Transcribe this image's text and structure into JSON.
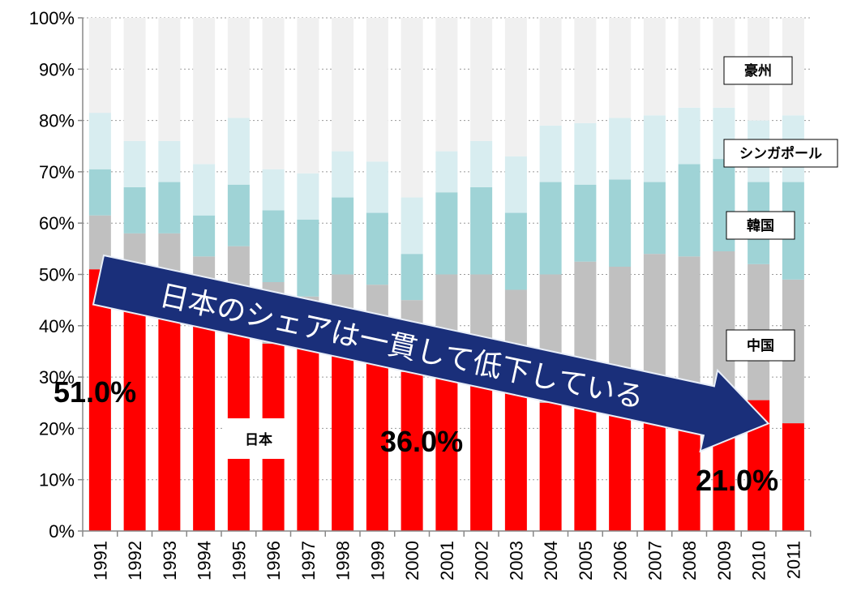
{
  "chart_data": {
    "type": "bar",
    "stacked": true,
    "ylim": [
      0,
      100
    ],
    "y_unit": "%",
    "y_ticks": [
      "0%",
      "10%",
      "20%",
      "30%",
      "40%",
      "50%",
      "60%",
      "70%",
      "80%",
      "90%",
      "100%"
    ],
    "categories": [
      "1991",
      "1992",
      "1993",
      "1994",
      "1995",
      "1996",
      "1997",
      "1998",
      "1999",
      "2000",
      "2001",
      "2002",
      "2003",
      "2004",
      "2005",
      "2006",
      "2007",
      "2008",
      "2009",
      "2010",
      "2011"
    ],
    "grid": true,
    "series": [
      {
        "name": "日本",
        "color": "#ff0000",
        "values": [
          51,
          43,
          44,
          42.5,
          39.5,
          36.5,
          35.7,
          36,
          33,
          31,
          36,
          31,
          33,
          25,
          27,
          24.7,
          27,
          27,
          26.5,
          25.5,
          21
        ]
      },
      {
        "name": "中国",
        "color": "#c0c0c0",
        "values": [
          10.5,
          15,
          14,
          11,
          16,
          12,
          10,
          14,
          15,
          14,
          14,
          19,
          14,
          25,
          25.5,
          26.8,
          27,
          26.5,
          28,
          26.5,
          28
        ]
      },
      {
        "name": "韓国",
        "color": "#9fd3d6",
        "values": [
          9,
          9,
          10,
          8,
          12,
          14,
          15,
          15,
          14,
          9,
          16,
          17,
          15,
          18,
          15,
          17,
          14,
          18,
          18,
          16,
          19
        ]
      },
      {
        "name": "シンガポール",
        "color": "#d8edf0",
        "values": [
          11,
          9,
          8,
          10,
          13,
          8,
          9,
          9,
          10,
          11,
          8,
          9,
          11,
          11,
          12,
          12,
          13,
          11,
          10,
          12,
          13
        ]
      },
      {
        "name": "豪州",
        "color": "#f0f0f0",
        "values": [
          18.5,
          24,
          24,
          28.5,
          19.5,
          29.5,
          30.3,
          26,
          28,
          35,
          26,
          24,
          27,
          21,
          20.5,
          19.5,
          19,
          17.5,
          17.5,
          20,
          19
        ]
      }
    ],
    "annotations": {
      "start_value": "51.0%",
      "mid_value": "36.0%",
      "end_value": "21.0%",
      "arrow_text": "日本のシェアは一貫して低下している",
      "arrow_color": "#1a2f7a"
    }
  }
}
